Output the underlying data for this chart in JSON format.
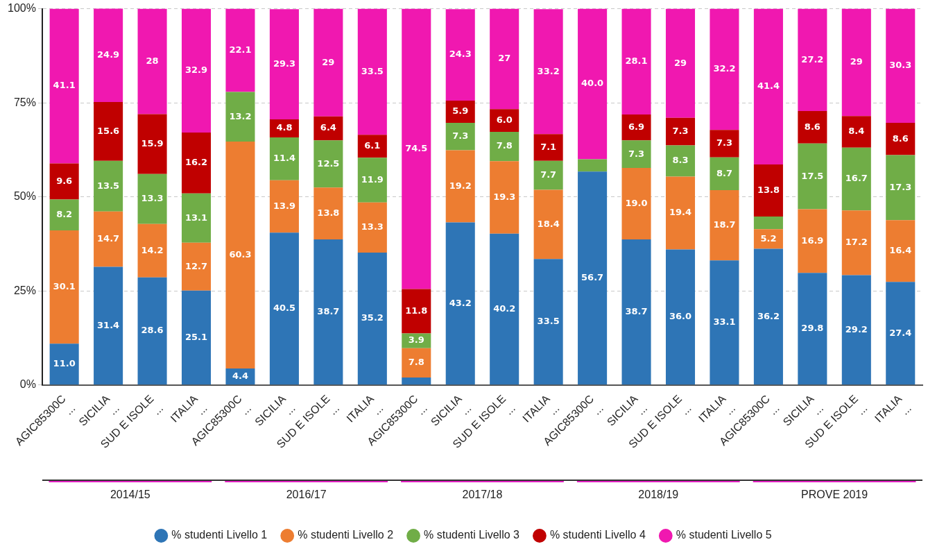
{
  "chart_data": {
    "type": "bar",
    "stacked": true,
    "categories": [
      "AGIC85300C\n...",
      "SICILIA\n...",
      "SUD E ISOLE\n...",
      "ITALIA\n...",
      "AGIC85300C\n...",
      "SICILIA\n...",
      "SUD E ISOLE\n...",
      "ITALIA\n...",
      "AGIC85300C\n...",
      "SICILIA\n...",
      "SUD E ISOLE\n...",
      "ITALIA\n...",
      "AGIC85300C\n...",
      "SICILIA\n...",
      "SUD E ISOLE\n...",
      "ITALIA\n...",
      "AGIC85300C\n...",
      "SICILIA\n...",
      "SUD E ISOLE\n...",
      "ITALIA\n..."
    ],
    "series": [
      {
        "name": "% studenti Livello 1",
        "color": "#2e75b6",
        "values": [
          11.0,
          31.4,
          28.6,
          25.1,
          4.4,
          40.5,
          38.7,
          35.2,
          2.0,
          43.2,
          40.2,
          33.5,
          56.7,
          38.7,
          36.0,
          33.1,
          36.2,
          29.8,
          29.2,
          27.4
        ],
        "value_labels": [
          "11.0",
          "31.4",
          "28.6",
          "25.1",
          "4.4",
          "40.5",
          "38.7",
          "35.2",
          null,
          "43.2",
          "40.2",
          "33.5",
          "56.7",
          "38.7",
          "36.0",
          "33.1",
          "36.2",
          "29.8",
          "29.2",
          "27.4"
        ]
      },
      {
        "name": "% studenti Livello 2",
        "color": "#ed7d31",
        "values": [
          30.1,
          14.7,
          14.2,
          12.7,
          60.3,
          13.9,
          13.8,
          13.3,
          7.8,
          19.2,
          19.3,
          18.4,
          null,
          19.0,
          19.4,
          18.7,
          5.2,
          16.9,
          17.2,
          16.4
        ],
        "value_labels": [
          "30.1",
          "14.7",
          "14.2",
          "12.7",
          "60.3",
          "13.9",
          "13.8",
          "13.3",
          "7.8",
          "19.2",
          "19.3",
          "18.4",
          null,
          "19.0",
          "19.4",
          "18.7",
          "5.2",
          "16.9",
          "17.2",
          "16.4"
        ]
      },
      {
        "name": "% studenti Livello 3",
        "color": "#70ad47",
        "values": [
          8.2,
          13.5,
          13.3,
          13.1,
          13.2,
          11.4,
          12.5,
          11.9,
          3.9,
          7.3,
          7.8,
          7.7,
          3.3,
          7.3,
          8.3,
          8.7,
          3.4,
          17.5,
          16.7,
          17.3
        ],
        "value_labels": [
          "8.2",
          "13.5",
          "13.3",
          "13.1",
          "13.2",
          "11.4",
          "12.5",
          "11.9",
          "3.9",
          "7.3",
          "7.8",
          "7.7",
          null,
          "7.3",
          "8.3",
          "8.7",
          null,
          "17.5",
          "16.7",
          "17.3"
        ]
      },
      {
        "name": "% studenti Livello 4",
        "color": "#c00000",
        "values": [
          9.6,
          15.6,
          15.9,
          16.2,
          null,
          4.8,
          6.4,
          6.1,
          11.8,
          5.9,
          6.0,
          7.1,
          null,
          6.9,
          7.3,
          7.3,
          13.8,
          8.6,
          8.4,
          8.6
        ],
        "value_labels": [
          "9.6",
          "15.6",
          "15.9",
          "16.2",
          null,
          "4.8",
          "6.4",
          "6.1",
          "11.8",
          "5.9",
          "6.0",
          "7.1",
          null,
          "6.9",
          "7.3",
          "7.3",
          "13.8",
          "8.6",
          "8.4",
          "8.6"
        ]
      },
      {
        "name": "% studenti Livello 5",
        "color": "#f018b0",
        "values": [
          41.1,
          24.9,
          28,
          32.9,
          22.1,
          29.3,
          28.6,
          33.5,
          74.5,
          24.3,
          26.7,
          33.2,
          40.0,
          28.1,
          29,
          32.2,
          41.4,
          27.2,
          28.5,
          30.3
        ],
        "value_labels": [
          "41.1",
          "24.9",
          "28",
          "32.9",
          "22.1",
          "29.3",
          "29",
          "33.5",
          "74.5",
          "24.3",
          "27",
          "33.2",
          "40.0",
          "28.1",
          "29",
          "32.2",
          "41.4",
          "27.2",
          "29",
          "30.3"
        ]
      }
    ],
    "ylim": [
      0,
      100
    ],
    "yticks": [
      {
        "value": 0,
        "label": "0%"
      },
      {
        "value": 25,
        "label": "25%"
      },
      {
        "value": 50,
        "label": "50%"
      },
      {
        "value": 75,
        "label": "75%"
      },
      {
        "value": 100,
        "label": "100%"
      }
    ],
    "grid": "y",
    "legend": "bottom",
    "annotations": [
      "2014/15",
      "2016/17",
      "2017/18",
      "2018/19",
      "PROVE 2019"
    ]
  }
}
